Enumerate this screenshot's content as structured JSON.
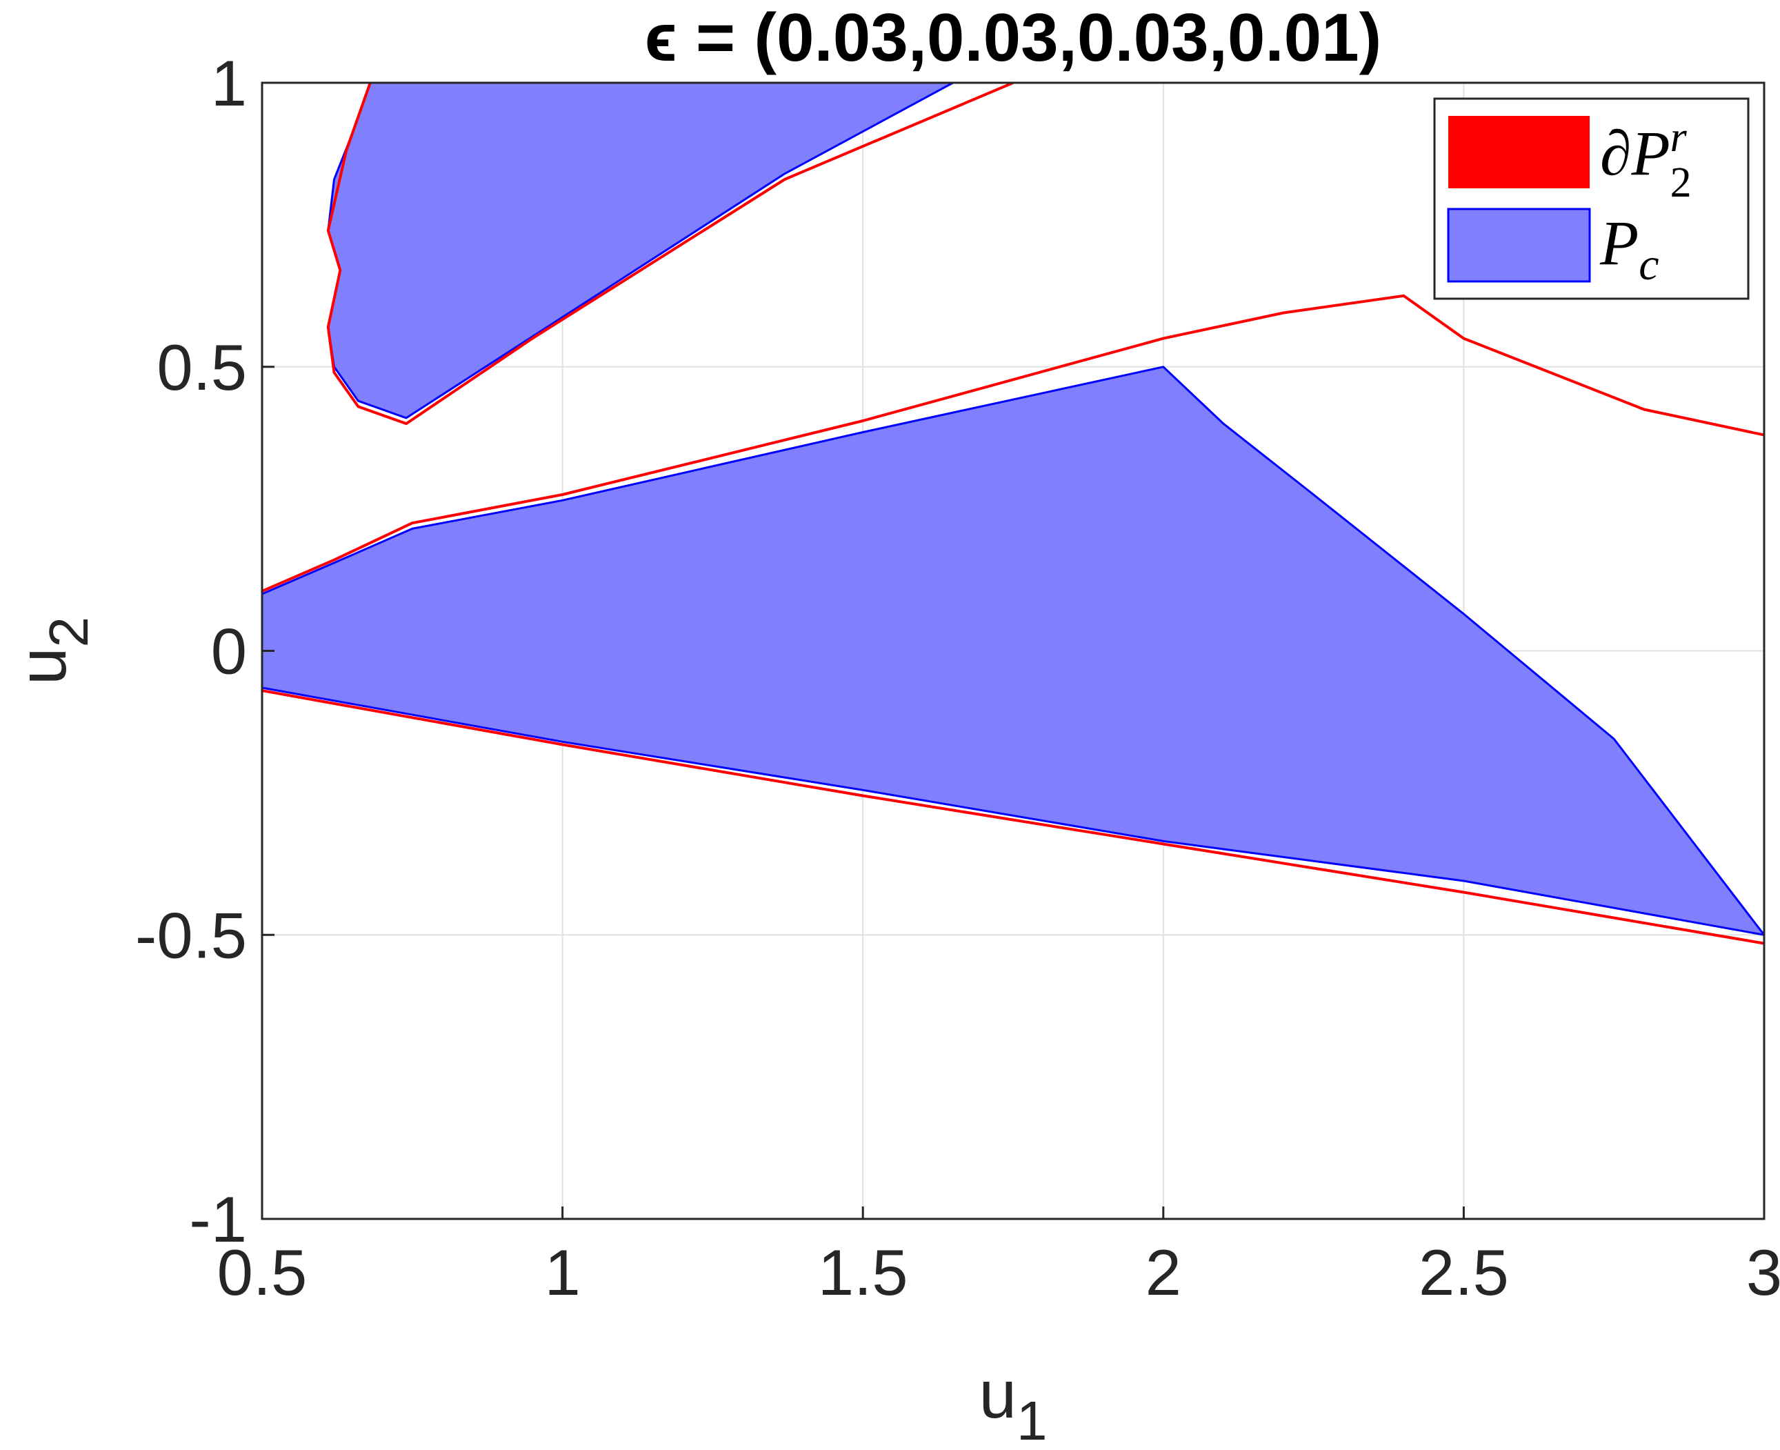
{
  "chart_data": {
    "type": "area",
    "title": "ϵ = (0.03,0.03,0.03,0.01)",
    "xlabel": "u",
    "xlabel_sub": "1",
    "ylabel": "u",
    "ylabel_sub": "2",
    "xlim": [
      0.5,
      3
    ],
    "ylim": [
      -1,
      1
    ],
    "xticks": [
      0.5,
      1,
      1.5,
      2,
      2.5,
      3
    ],
    "yticks": [
      -1,
      -0.5,
      0,
      0.5,
      1
    ],
    "xtick_labels": [
      "0.5",
      "1",
      "1.5",
      "2",
      "2.5",
      "3"
    ],
    "ytick_labels": [
      "-1",
      "-0.5",
      "0",
      "0.5",
      "1"
    ],
    "grid": true,
    "legend_position": "top-right",
    "colors": {
      "boundary": "#ff0000",
      "region_fill": "#8080ff",
      "region_edge": "#0000ff",
      "grid": "#e0e0e0",
      "axis": "#262626"
    },
    "series": [
      {
        "name": "∂P₂ʳ",
        "legend_main": "∂P",
        "legend_sub": "2",
        "legend_sup": "r",
        "kind": "boundary",
        "curves": [
          [
            [
              0.68,
              1.0
            ],
            [
              0.64,
              0.88
            ],
            [
              0.61,
              0.74
            ],
            [
              0.63,
              0.67
            ],
            [
              0.61,
              0.57
            ],
            [
              0.62,
              0.49
            ],
            [
              0.66,
              0.43
            ],
            [
              0.74,
              0.4
            ],
            [
              0.95,
              0.55
            ],
            [
              1.37,
              0.83
            ],
            [
              1.75,
              1.0
            ]
          ],
          [
            [
              0.5,
              0.105
            ],
            [
              0.62,
              0.16
            ],
            [
              0.75,
              0.225
            ],
            [
              1.0,
              0.275
            ],
            [
              1.5,
              0.405
            ],
            [
              2.0,
              0.55
            ],
            [
              2.2,
              0.595
            ],
            [
              2.4,
              0.625
            ],
            [
              2.5,
              0.55
            ],
            [
              2.8,
              0.425
            ],
            [
              3.0,
              0.38
            ]
          ],
          [
            [
              0.5,
              -0.07
            ],
            [
              1.0,
              -0.165
            ],
            [
              1.5,
              -0.255
            ],
            [
              2.0,
              -0.34
            ],
            [
              2.5,
              -0.425
            ],
            [
              3.0,
              -0.515
            ]
          ]
        ]
      },
      {
        "name": "P_c",
        "legend_main": "P",
        "legend_sub": "c",
        "kind": "region",
        "polygons": [
          [
            [
              0.68,
              1.0
            ],
            [
              1.65,
              1.0
            ],
            [
              1.37,
              0.84
            ],
            [
              0.74,
              0.41
            ],
            [
              0.66,
              0.44
            ],
            [
              0.62,
              0.5
            ],
            [
              0.61,
              0.57
            ],
            [
              0.63,
              0.67
            ],
            [
              0.61,
              0.74
            ],
            [
              0.62,
              0.83
            ],
            [
              0.65,
              0.91
            ]
          ],
          [
            [
              0.5,
              0.1
            ],
            [
              0.62,
              0.155
            ],
            [
              0.75,
              0.215
            ],
            [
              1.0,
              0.265
            ],
            [
              1.5,
              0.385
            ],
            [
              2.0,
              0.5
            ],
            [
              2.1,
              0.4
            ],
            [
              2.25,
              0.275
            ],
            [
              2.5,
              0.065
            ],
            [
              2.75,
              -0.155
            ],
            [
              3.0,
              -0.5
            ],
            [
              2.5,
              -0.405
            ],
            [
              2.0,
              -0.335
            ],
            [
              1.5,
              -0.245
            ],
            [
              1.0,
              -0.16
            ],
            [
              0.5,
              -0.065
            ]
          ]
        ]
      }
    ]
  }
}
